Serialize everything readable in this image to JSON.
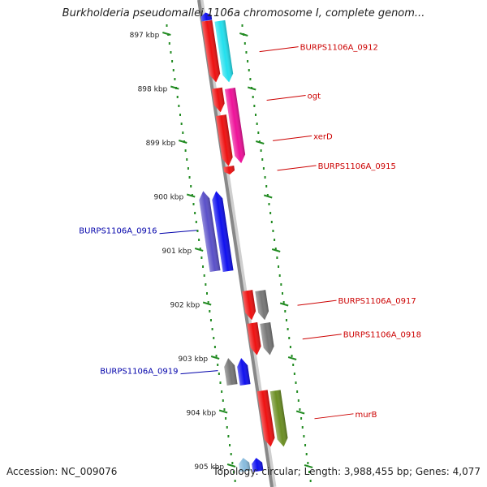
{
  "title": "Burkholderia pseudomallei 1106a chromosome I, complete genom...",
  "footer": {
    "accession": "Accession: NC_009076",
    "topology": "Topology: circular; Length: 3,988,455 bp; Genes: 4,077"
  },
  "kbp_ticks": [
    {
      "label": "897 kbp",
      "kbp": 897
    },
    {
      "label": "898 kbp",
      "kbp": 898
    },
    {
      "label": "899 kbp",
      "kbp": 899
    },
    {
      "label": "900 kbp",
      "kbp": 900
    },
    {
      "label": "901 kbp",
      "kbp": 901
    },
    {
      "label": "902 kbp",
      "kbp": 902
    },
    {
      "label": "903 kbp",
      "kbp": 903
    },
    {
      "label": "904 kbp",
      "kbp": 904
    },
    {
      "label": "905 kbp",
      "kbp": 905
    }
  ],
  "genes": [
    {
      "name": "",
      "strand": "reverse",
      "color": "#1010ee",
      "start_kbp": 896.6,
      "end_kbp": 896.75,
      "lane": 1
    },
    {
      "name": "BURPS1106A_0912",
      "strand": "forward",
      "color": "#ee1111",
      "start_kbp": 896.75,
      "end_kbp": 897.9,
      "lane": 1
    },
    {
      "name": "",
      "strand": "forward",
      "color": "#22e0ee",
      "start_kbp": 896.75,
      "end_kbp": 897.9,
      "lane": 2
    },
    {
      "name": "ogt",
      "strand": "forward",
      "color": "#ee1111",
      "start_kbp": 898.0,
      "end_kbp": 898.45,
      "lane": 1
    },
    {
      "name": "",
      "strand": "forward",
      "color": "#ee1199",
      "start_kbp": 898.0,
      "end_kbp": 899.4,
      "lane": 2
    },
    {
      "name": "xerD",
      "strand": "forward",
      "color": "#ee1111",
      "start_kbp": 898.5,
      "end_kbp": 899.45,
      "lane": 1
    },
    {
      "name": "BURPS1106A_0915",
      "strand": "forward",
      "color": "#ee1111",
      "start_kbp": 899.45,
      "end_kbp": 899.6,
      "lane": 1
    },
    {
      "name": "",
      "strand": "reverse",
      "color": "#5a50c8",
      "start_kbp": 899.9,
      "end_kbp": 901.4,
      "lane": -2
    },
    {
      "name": "BURPS1106A_0916",
      "strand": "reverse",
      "color": "#1010ee",
      "start_kbp": 899.9,
      "end_kbp": 901.4,
      "lane": -1
    },
    {
      "name": "BURPS1106A_0917",
      "strand": "forward",
      "color": "#ee1111",
      "start_kbp": 901.75,
      "end_kbp": 902.3,
      "lane": 1
    },
    {
      "name": "",
      "strand": "forward",
      "color": "#777777",
      "start_kbp": 901.75,
      "end_kbp": 902.3,
      "lane": 2
    },
    {
      "name": "BURPS1106A_0918",
      "strand": "forward",
      "color": "#ee1111",
      "start_kbp": 902.35,
      "end_kbp": 902.95,
      "lane": 1
    },
    {
      "name": "",
      "strand": "forward",
      "color": "#777777",
      "start_kbp": 902.35,
      "end_kbp": 902.95,
      "lane": 2
    },
    {
      "name": "",
      "strand": "reverse",
      "color": "#777777",
      "start_kbp": 903.0,
      "end_kbp": 903.5,
      "lane": -2
    },
    {
      "name": "BURPS1106A_0919",
      "strand": "reverse",
      "color": "#1010ee",
      "start_kbp": 903.0,
      "end_kbp": 903.5,
      "lane": -1
    },
    {
      "name": "murB",
      "strand": "forward",
      "color": "#ee1111",
      "start_kbp": 903.6,
      "end_kbp": 904.65,
      "lane": 1
    },
    {
      "name": "",
      "strand": "forward",
      "color": "#6b8e23",
      "start_kbp": 903.6,
      "end_kbp": 904.65,
      "lane": 2
    },
    {
      "name": "",
      "strand": "reverse",
      "color": "#88bbdd",
      "start_kbp": 904.85,
      "end_kbp": 905.1,
      "lane": -2
    },
    {
      "name": "",
      "strand": "reverse",
      "color": "#1010ee",
      "start_kbp": 904.85,
      "end_kbp": 905.1,
      "lane": -1
    }
  ],
  "colors": {
    "backbone": "#888888",
    "tick": "#228b22",
    "forward_label": "#cc0000",
    "reverse_label": "#0000aa"
  }
}
